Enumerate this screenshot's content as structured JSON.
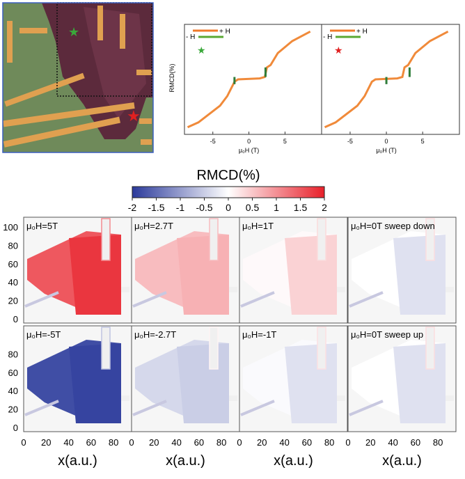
{
  "top_left_image": {
    "description_marks": [
      "star-green",
      "star-red"
    ]
  },
  "hysteresis": {
    "ylabel": "RMCD(%)",
    "xlabel": "μ₀H (T)",
    "xticks": [
      "-5",
      "0",
      "5"
    ],
    "sweep_labels": {
      "plus": "+ H",
      "minus": "- H"
    },
    "panels": [
      {
        "star_color": "#3aa83a"
      },
      {
        "star_color": "#e02020"
      }
    ],
    "colors": {
      "curve": "#f08a3a",
      "step": "#2f7d3a",
      "arrow_up": "#f07a2a",
      "arrow_down": "#5aa832"
    }
  },
  "colorbar": {
    "title": "RMCD(%)",
    "ticks": [
      "-2",
      "-1.5",
      "-1",
      "-0.5",
      "0",
      "0.5",
      "1",
      "1.5",
      "2"
    ],
    "range": [
      -2,
      2
    ],
    "low_color": "#2b3a9b",
    "mid_color": "#ffffff",
    "high_color": "#e8202a"
  },
  "chart_data": {
    "type": "heatmap",
    "colorbar_label": "RMCD(%)",
    "xlabel": "x(a.u.)",
    "xticks": [
      0,
      20,
      40,
      60,
      80
    ],
    "yticks_top_row": [
      0,
      20,
      40,
      60,
      80,
      100
    ],
    "yticks_bottom_row": [
      0,
      20,
      40,
      60,
      80
    ],
    "panels": [
      {
        "label": "μ₀H=5T",
        "flake_value": 1.5,
        "region2_value": 1.8
      },
      {
        "label": "μ₀H=2.7T",
        "flake_value": 0.6,
        "region2_value": 0.7
      },
      {
        "label": "μ₀H=1T",
        "flake_value": 0.05,
        "region2_value": 0.4
      },
      {
        "label": "μ₀H=0T sweep down",
        "flake_value": 0.0,
        "region2_value": -0.3
      },
      {
        "label": "μ₀H=-5T",
        "flake_value": -1.8,
        "region2_value": -1.9
      },
      {
        "label": "μ₀H=-2.7T",
        "flake_value": -0.4,
        "region2_value": -0.5
      },
      {
        "label": "μ₀H=-1T",
        "flake_value": -0.05,
        "region2_value": -0.3
      },
      {
        "label": "μ₀H=0T sweep up",
        "flake_value": 0.0,
        "region2_value": -0.3
      }
    ]
  }
}
